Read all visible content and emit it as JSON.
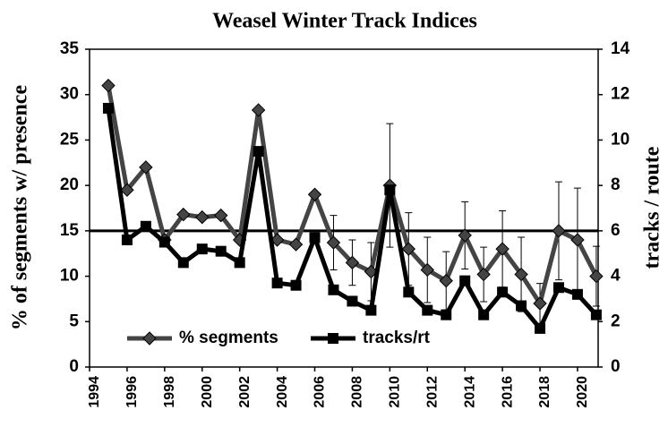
{
  "chart_data": {
    "type": "line",
    "title": "Weasel Winter Track Indices",
    "ylabel": "% of segments w/ presence",
    "y2label": "tracks / route",
    "x": [
      1995,
      1996,
      1997,
      1998,
      1999,
      2000,
      2001,
      2002,
      2003,
      2004,
      2005,
      2006,
      2007,
      2008,
      2009,
      2010,
      2011,
      2012,
      2013,
      2014,
      2015,
      2016,
      2017,
      2018,
      2019,
      2020,
      2021
    ],
    "series": [
      {
        "name": "% segments",
        "color": "#444444",
        "marker": "diamond",
        "values": [
          31,
          19.5,
          22,
          14,
          16.8,
          16.5,
          16.7,
          14,
          28.3,
          14,
          13.5,
          19,
          13.7,
          11.5,
          10.5,
          20,
          13,
          10.7,
          9.5,
          14.5,
          10.2,
          13,
          10.2,
          7,
          15,
          14,
          10
        ],
        "errors": [
          null,
          null,
          null,
          null,
          null,
          null,
          null,
          null,
          null,
          null,
          null,
          null,
          3,
          2.5,
          3.2,
          6.8,
          4,
          3.6,
          3.2,
          3.7,
          3,
          4.2,
          4.1,
          2.2,
          5.4,
          5.7,
          3.3
        ]
      },
      {
        "name": "tracks/rt",
        "color": "#000000",
        "marker": "square",
        "axis": "y2",
        "values": [
          11.4,
          5.6,
          6.2,
          5.5,
          4.6,
          5.2,
          5.1,
          4.6,
          9.5,
          3.7,
          3.6,
          5.7,
          3.4,
          2.9,
          2.5,
          7.8,
          3.3,
          2.5,
          2.3,
          3.8,
          2.3,
          3.3,
          2.7,
          1.7,
          3.5,
          3.2,
          2.3
        ]
      }
    ],
    "reference_line": 15,
    "xlim": [
      1994,
      2021.1
    ],
    "xticks": [
      1994,
      1996,
      1998,
      2000,
      2002,
      2004,
      2006,
      2008,
      2010,
      2012,
      2014,
      2016,
      2018,
      2020
    ],
    "ylim": [
      0,
      35
    ],
    "yticks": [
      0,
      5,
      10,
      15,
      20,
      25,
      30,
      35
    ],
    "y2lim": [
      0,
      14
    ],
    "y2ticks": [
      0,
      2,
      4,
      6,
      8,
      10,
      12,
      14
    ],
    "legend": "lower left",
    "grid": false
  }
}
